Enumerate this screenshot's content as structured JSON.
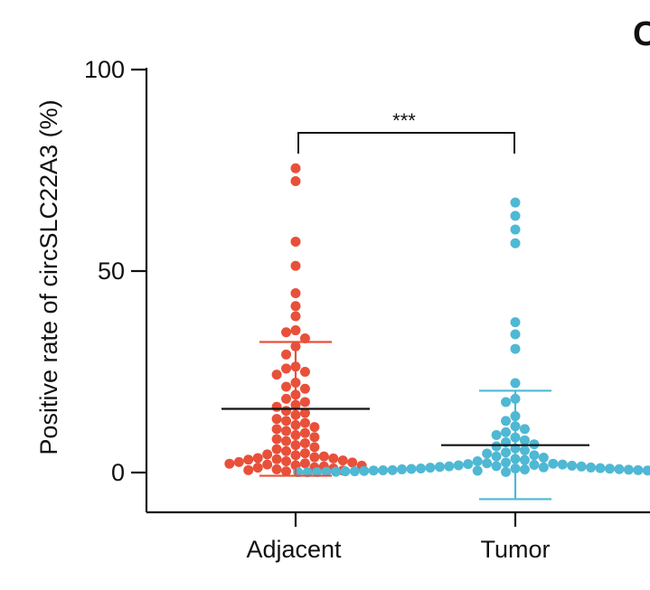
{
  "panel_label": "C",
  "chart_data": {
    "type": "scatter",
    "ylabel": "Positive rate of circSLC22A3 (%)",
    "xlabel": "",
    "ylim": [
      -10,
      100
    ],
    "yticks": [
      "0",
      "50",
      "100"
    ],
    "categories": [
      "Adjacent",
      "Tumor"
    ],
    "significance": "***",
    "series": [
      {
        "name": "Adjacent",
        "color": "#e8503a",
        "mean": 15.8,
        "sd_upper": 32.4,
        "sd_lower": -0.8,
        "values": [
          75.5,
          72.3,
          57.3,
          51.3,
          44.5,
          41.3,
          38.8,
          35.3,
          34.8,
          33.3,
          31.3,
          29.3,
          26.3,
          25.8,
          25.0,
          24.3,
          22.3,
          21.3,
          20.8,
          19.3,
          18.3,
          17.5,
          16.8,
          16.3,
          15.3,
          14.8,
          14.3,
          13.3,
          12.8,
          12.3,
          11.8,
          11.3,
          10.8,
          10.3,
          9.8,
          9.3,
          8.8,
          8.3,
          7.8,
          7.3,
          6.8,
          6.3,
          5.8,
          5.3,
          4.8,
          4.3,
          4.0,
          3.8,
          3.5,
          3.3,
          3.0,
          2.8,
          2.5,
          2.3,
          2.0,
          1.8,
          1.5,
          1.3,
          1.0,
          0.8,
          0.5,
          0.3,
          4.5,
          3.2,
          2.2,
          1.2,
          0.6,
          1.7,
          2.6,
          3.6
        ]
      },
      {
        "name": "Tumor",
        "color": "#4fb8d4",
        "mean": 6.8,
        "sd_upper": 20.3,
        "sd_lower": -6.6,
        "values": [
          67.0,
          63.7,
          60.3,
          56.9,
          37.3,
          34.3,
          30.7,
          22.2,
          18.3,
          17.5,
          14.0,
          12.8,
          11.5,
          10.8,
          10.0,
          9.3,
          8.7,
          8.0,
          7.5,
          7.0,
          6.5,
          6.0,
          5.5,
          5.0,
          4.7,
          4.3,
          4.0,
          3.7,
          3.4,
          3.1,
          2.8,
          2.5,
          2.3,
          2.1,
          1.9,
          1.7,
          1.5,
          1.3,
          1.2,
          1.0,
          0.9,
          0.8,
          0.7,
          0.6,
          0.5,
          0.45,
          0.4,
          0.35,
          0.3,
          0.25,
          0.2,
          0.15,
          0.1,
          0.05,
          0.0,
          1.6,
          1.1,
          0.55,
          0.2,
          2.0,
          1.4,
          0.85,
          0.3,
          0.1,
          1.8,
          1.25,
          0.75,
          0.4,
          0.15,
          2.2,
          1.55,
          0.95,
          0.5,
          0.2,
          0.05,
          1.0,
          0.6,
          0.3,
          0.1
        ]
      }
    ]
  }
}
